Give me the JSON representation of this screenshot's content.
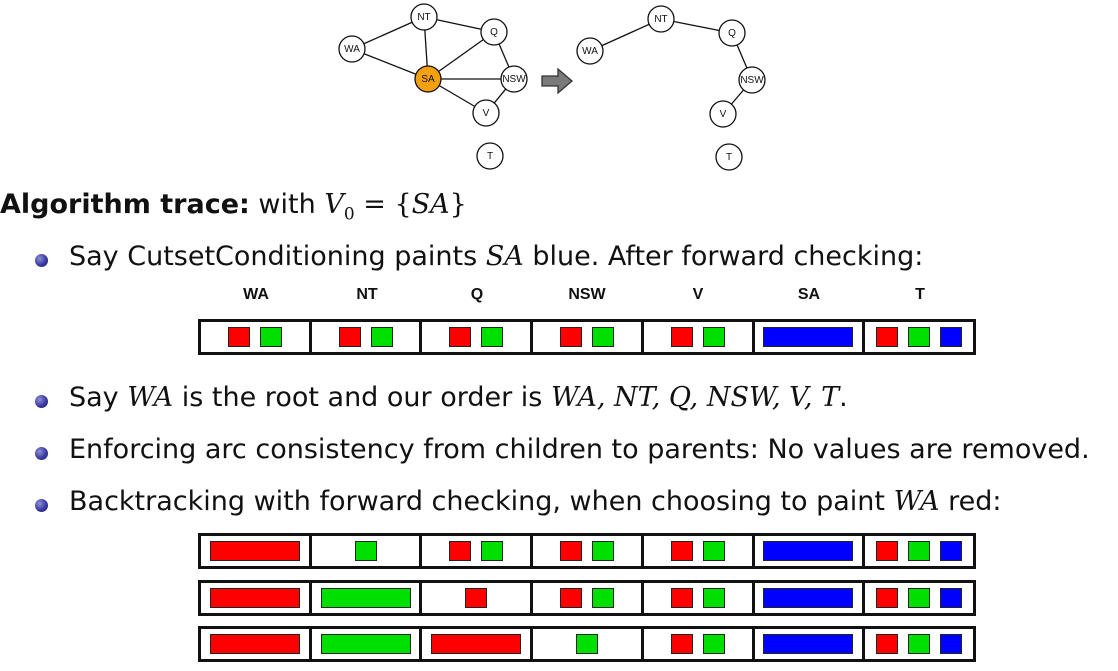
{
  "colors": {
    "red": "#ff0000",
    "green": "#00e000",
    "blue": "#0000ff",
    "highlight": "#f5a00f"
  },
  "graph_left": {
    "nodes": [
      {
        "id": "WA",
        "label": "WA",
        "highlight": false
      },
      {
        "id": "NT",
        "label": "NT",
        "highlight": false
      },
      {
        "id": "Q",
        "label": "Q",
        "highlight": false
      },
      {
        "id": "SA",
        "label": "SA",
        "highlight": true
      },
      {
        "id": "NSW",
        "label": "NSW",
        "highlight": false
      },
      {
        "id": "V",
        "label": "V",
        "highlight": false
      },
      {
        "id": "T",
        "label": "T",
        "highlight": false
      }
    ],
    "edges": [
      [
        "WA",
        "NT"
      ],
      [
        "WA",
        "SA"
      ],
      [
        "NT",
        "SA"
      ],
      [
        "NT",
        "Q"
      ],
      [
        "SA",
        "Q"
      ],
      [
        "SA",
        "NSW"
      ],
      [
        "SA",
        "V"
      ],
      [
        "Q",
        "NSW"
      ],
      [
        "NSW",
        "V"
      ]
    ]
  },
  "graph_right": {
    "nodes": [
      {
        "id": "WA",
        "label": "WA",
        "highlight": false
      },
      {
        "id": "NT",
        "label": "NT",
        "highlight": false
      },
      {
        "id": "Q",
        "label": "Q",
        "highlight": false
      },
      {
        "id": "NSW",
        "label": "NSW",
        "highlight": false
      },
      {
        "id": "V",
        "label": "V",
        "highlight": false
      },
      {
        "id": "T",
        "label": "T",
        "highlight": false
      }
    ],
    "edges": [
      [
        "WA",
        "NT"
      ],
      [
        "NT",
        "Q"
      ],
      [
        "Q",
        "NSW"
      ],
      [
        "NSW",
        "V"
      ]
    ]
  },
  "heading": {
    "bold": "Algorithm trace:",
    "rest": "with",
    "math": "V0 = {SA}"
  },
  "bullets": [
    {
      "pre": "Say CutsetConditioning paints",
      "math": "SA",
      "post": "blue. After forward checking:"
    },
    {
      "pre": "Say",
      "math": "WA",
      "mid": "is the root and our order is",
      "math2": "WA, NT, Q, NSW, V, T",
      "post": "."
    },
    {
      "text": "Enforcing arc consistency from children to parents: No values are removed."
    },
    {
      "pre": "Backtracking with forward checking, when choosing to paint",
      "math": "WA",
      "post": "red:"
    }
  ],
  "columns": [
    "WA",
    "NT",
    "Q",
    "NSW",
    "V",
    "SA",
    "T"
  ],
  "domain_rows": [
    [
      [
        "red",
        "green"
      ],
      [
        "red",
        "green"
      ],
      [
        "red",
        "green"
      ],
      [
        "red",
        "green"
      ],
      [
        "red",
        "green"
      ],
      [
        "blue"
      ],
      [
        "red",
        "green",
        "blue"
      ]
    ],
    [
      [
        "red"
      ],
      [
        "green"
      ],
      [
        "red",
        "green"
      ],
      [
        "red",
        "green"
      ],
      [
        "red",
        "green"
      ],
      [
        "blue"
      ],
      [
        "red",
        "green",
        "blue"
      ]
    ],
    [
      [
        "red"
      ],
      [
        "green"
      ],
      [
        "red"
      ],
      [
        "red",
        "green"
      ],
      [
        "red",
        "green"
      ],
      [
        "blue"
      ],
      [
        "red",
        "green",
        "blue"
      ]
    ],
    [
      [
        "red"
      ],
      [
        "green"
      ],
      [
        "red"
      ],
      [
        "green"
      ],
      [
        "red",
        "green"
      ],
      [
        "blue"
      ],
      [
        "red",
        "green",
        "blue"
      ]
    ]
  ]
}
